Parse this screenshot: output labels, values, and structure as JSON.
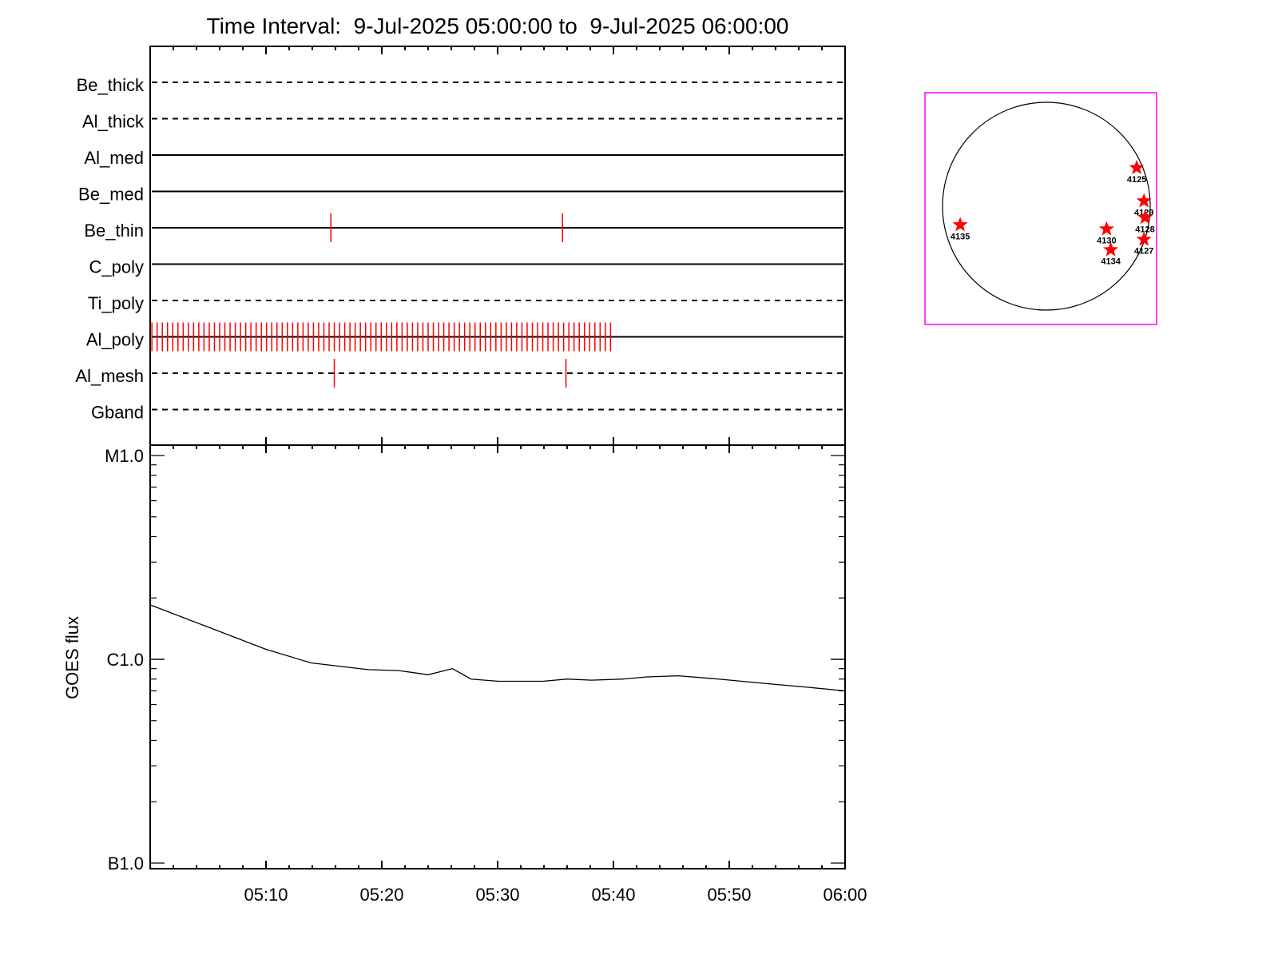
{
  "chart_data": [
    {
      "type": "timeline",
      "title": "Time Interval:  9-Jul-2025 05:00:00 to  9-Jul-2025 06:00:00",
      "x_unit": "minutes after 05:00",
      "xlim": [
        0,
        60
      ],
      "rows": [
        {
          "name": "Be_thick",
          "line": "dashed",
          "events": []
        },
        {
          "name": "Al_thick",
          "line": "dashed",
          "events": []
        },
        {
          "name": "Al_med",
          "line": "solid",
          "events": []
        },
        {
          "name": "Be_med",
          "line": "solid",
          "events": []
        },
        {
          "name": "Be_thin",
          "line": "solid",
          "events": [
            15.6,
            35.6
          ]
        },
        {
          "name": "C_poly",
          "line": "solid",
          "events": []
        },
        {
          "name": "Ti_poly",
          "line": "dashed",
          "events": []
        },
        {
          "name": "Al_poly",
          "line": "solid",
          "events": [
            0.15,
            0.6,
            1.05,
            1.5,
            1.95,
            2.4,
            2.85,
            3.3,
            3.75,
            4.2,
            4.65,
            5.1,
            5.55,
            6.0,
            6.45,
            6.9,
            7.35,
            7.8,
            8.25,
            8.7,
            9.15,
            9.6,
            10.05,
            10.5,
            10.95,
            11.4,
            11.85,
            12.3,
            12.75,
            13.2,
            13.65,
            14.1,
            14.55,
            15.0,
            15.45,
            15.9,
            16.35,
            16.8,
            17.25,
            17.7,
            18.15,
            18.6,
            19.05,
            19.5,
            19.95,
            20.4,
            20.85,
            21.3,
            21.75,
            22.2,
            22.65,
            23.1,
            23.55,
            24.0,
            24.45,
            24.9,
            25.35,
            25.8,
            26.25,
            26.7,
            27.15,
            27.6,
            28.05,
            28.5,
            28.95,
            29.4,
            29.85,
            30.3,
            30.75,
            31.2,
            31.65,
            32.1,
            32.55,
            33.0,
            33.45,
            33.9,
            34.35,
            34.8,
            35.25,
            35.7,
            36.15,
            36.6,
            37.05,
            37.5,
            37.95,
            38.4,
            38.85,
            39.3,
            39.75
          ]
        },
        {
          "name": "Al_mesh",
          "line": "dashed",
          "events": [
            15.9,
            35.9
          ]
        },
        {
          "name": "Gband",
          "line": "dashed",
          "events": []
        }
      ],
      "event_color": "#ff0000"
    },
    {
      "type": "line",
      "ylabel": "GOES flux",
      "yscale": "log",
      "ylim": [
        1e-07,
        1e-05
      ],
      "yticks": [
        {
          "value": 1e-07,
          "label": "B1.0"
        },
        {
          "value": 1e-06,
          "label": "C1.0"
        },
        {
          "value": 1e-05,
          "label": "M1.0"
        }
      ],
      "xlim": [
        0,
        60
      ],
      "xticks": [
        {
          "value": 10,
          "label": "05:10"
        },
        {
          "value": 20,
          "label": "05:20"
        },
        {
          "value": 30,
          "label": "05:30"
        },
        {
          "value": 40,
          "label": "05:40"
        },
        {
          "value": 50,
          "label": "05:50"
        },
        {
          "value": 60,
          "label": "06:00"
        }
      ],
      "x": [
        0,
        5.0,
        10.0,
        13.9,
        18.8,
        21.5,
        24.0,
        26.1,
        27.7,
        30.1,
        33.9,
        36.0,
        38.1,
        40.8,
        42.9,
        45.6,
        49.1,
        53.2,
        56.7,
        60.0
      ],
      "y": [
        1.85e-06,
        1.44e-06,
        1.12e-06,
        9.6e-07,
        8.9e-07,
        8.8e-07,
        8.4e-07,
        9e-07,
        8e-07,
        7.8e-07,
        7.8e-07,
        8e-07,
        7.9e-07,
        8e-07,
        8.2e-07,
        8.3e-07,
        8e-07,
        7.6e-07,
        7.3e-07,
        7e-07
      ]
    },
    {
      "type": "scatter",
      "description_unit": "solar radii from disk center",
      "border_color": "#ff00ff",
      "marker_color": "#ff0000",
      "points": [
        {
          "label": "4125",
          "x": 0.87,
          "y": 0.37
        },
        {
          "label": "4129",
          "x": 0.94,
          "y": 0.05
        },
        {
          "label": "4128",
          "x": 0.95,
          "y": -0.11
        },
        {
          "label": "4130",
          "x": 0.58,
          "y": -0.22
        },
        {
          "label": "4127",
          "x": 0.94,
          "y": -0.32
        },
        {
          "label": "4134",
          "x": 0.62,
          "y": -0.42
        },
        {
          "label": "4135",
          "x": -0.83,
          "y": -0.18
        }
      ]
    }
  ]
}
